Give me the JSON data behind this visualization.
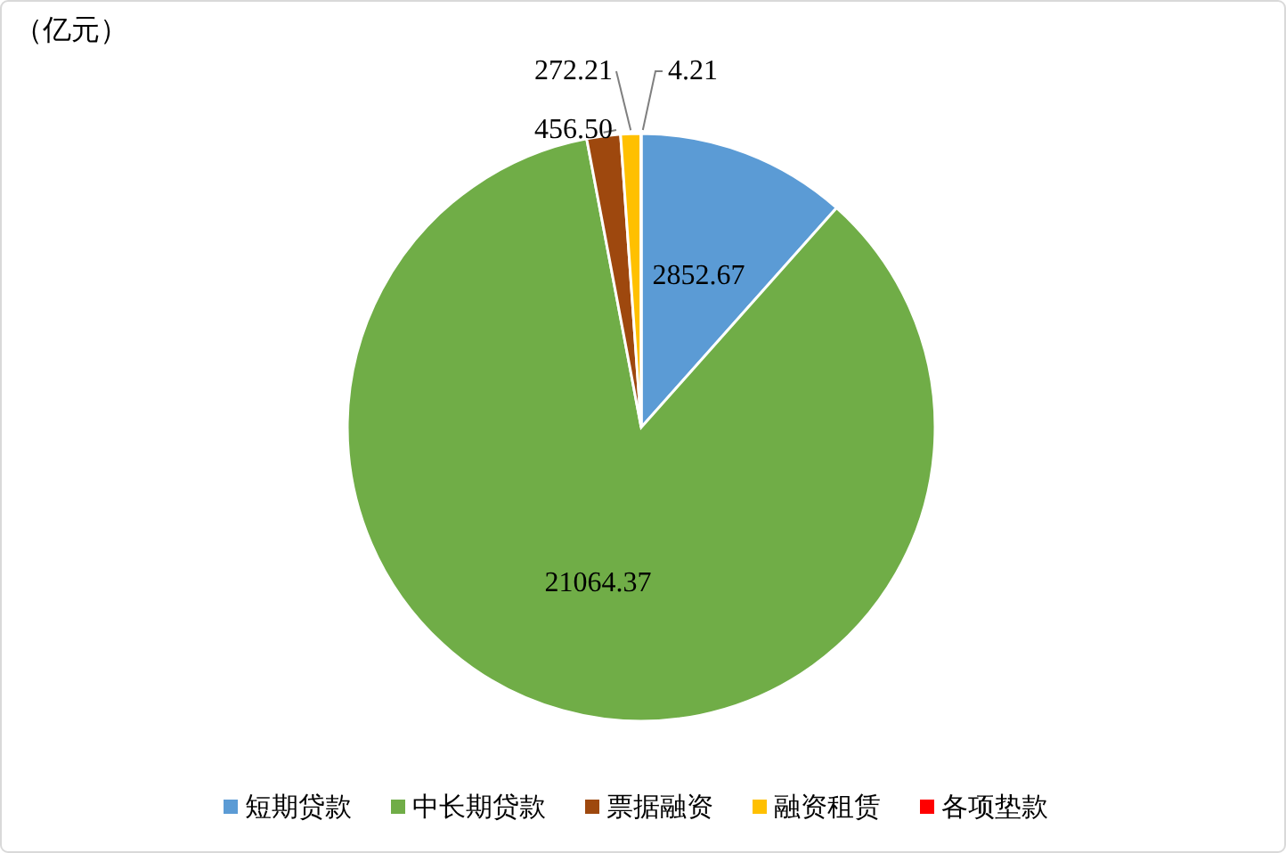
{
  "chart_data": {
    "type": "pie",
    "annotations": [
      "（亿元）"
    ],
    "categories": [
      "短期贷款",
      "中长期贷款",
      "票据融资",
      "融资租赁",
      "各项垫款"
    ],
    "values": [
      2852.67,
      21064.37,
      456.5,
      272.21,
      4.21
    ],
    "colors": [
      "#5b9bd5",
      "#70ad47",
      "#9e480e",
      "#ffc000",
      "#ff0000"
    ],
    "value_labels": [
      "2852.67",
      "21064.37",
      "456.50",
      "272.21",
      "4.21"
    ],
    "legend": "bottom"
  }
}
